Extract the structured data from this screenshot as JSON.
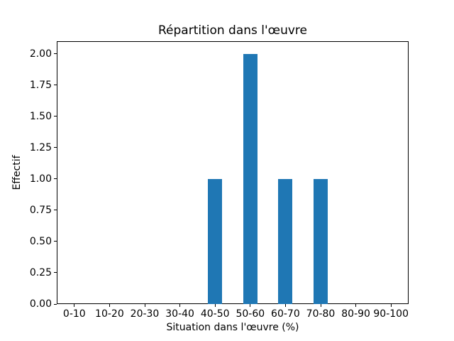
{
  "chart_data": {
    "type": "bar",
    "title": "Répartition dans l'œuvre",
    "xlabel": "Situation dans l'œuvre (%)",
    "ylabel": "Effectif",
    "categories": [
      "0-10",
      "10-20",
      "20-30",
      "30-40",
      "40-50",
      "50-60",
      "60-70",
      "70-80",
      "80-90",
      "90-100"
    ],
    "values": [
      0,
      0,
      0,
      0,
      1,
      2,
      1,
      1,
      0,
      0
    ],
    "ylim": [
      0,
      2.1
    ],
    "yticks": [
      {
        "v": 0.0,
        "label": "0.00"
      },
      {
        "v": 0.25,
        "label": "0.25"
      },
      {
        "v": 0.5,
        "label": "0.50"
      },
      {
        "v": 0.75,
        "label": "0.75"
      },
      {
        "v": 1.0,
        "label": "1.00"
      },
      {
        "v": 1.25,
        "label": "1.25"
      },
      {
        "v": 1.5,
        "label": "1.50"
      },
      {
        "v": 1.75,
        "label": "1.75"
      },
      {
        "v": 2.0,
        "label": "2.00"
      }
    ],
    "bar_color": "#1f77b4",
    "bar_width_frac": 0.4,
    "grid": false,
    "legend": "none",
    "background_color": "#ffffff",
    "axis_color": "#000000"
  }
}
